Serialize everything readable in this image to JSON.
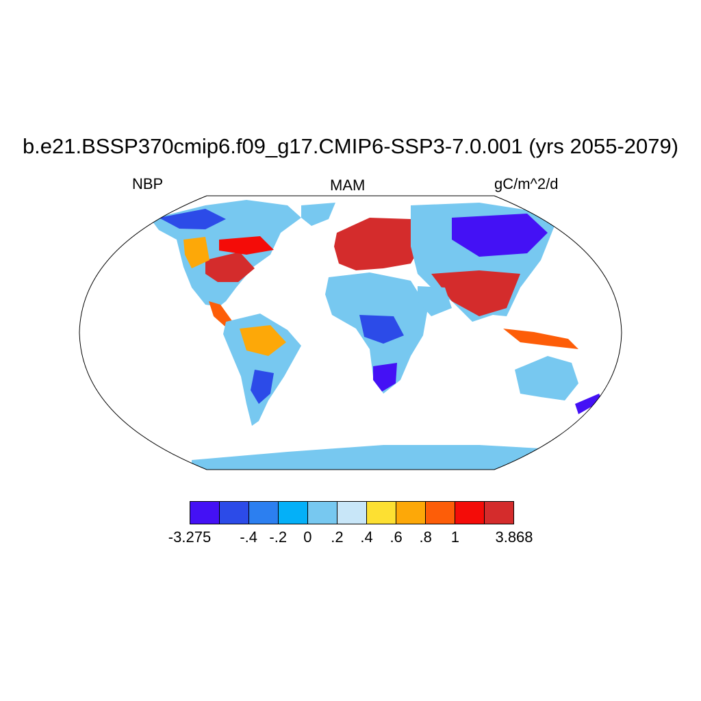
{
  "title": "b.e21.BSSP370cmip6.f09_g17.CMIP6-SSP3-7.0.001 (yrs 2055-2079)",
  "left_label": "NBP",
  "center_label": "MAM",
  "right_label": "gC/m^2/d",
  "colorbar": {
    "colors": [
      "#4411f5",
      "#2c4be8",
      "#2c7ff0",
      "#04b0f8",
      "#77c8f0",
      "#c8e6f8",
      "#fde032",
      "#fda808",
      "#fd5d08",
      "#f40c08",
      "#d42c2c"
    ],
    "labels": [
      "-3.275",
      "-.4",
      "-.2",
      "0",
      ".2",
      ".4",
      ".6",
      ".8",
      "1",
      "3.868"
    ]
  },
  "map": {
    "projection": "Robinson",
    "ocean_color": "#ffffff",
    "land_default": "#77c8f0",
    "coastline_color": "#000000"
  }
}
